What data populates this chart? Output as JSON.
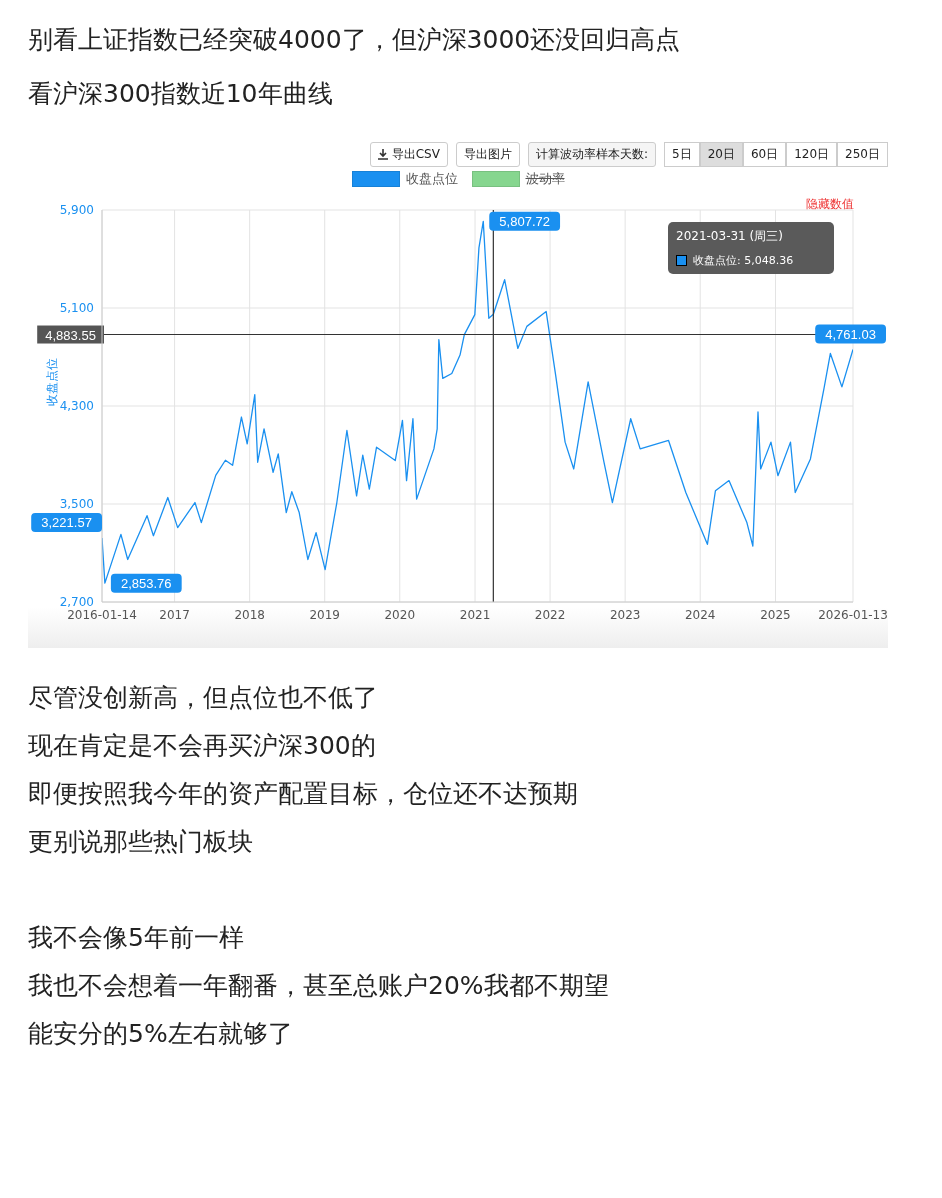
{
  "chart_data": {
    "type": "line",
    "title": "别看上证指数已经突破4000了，但沪深3000还没回归高点",
    "subtitle": "看沪深300指数近10年曲线",
    "ylabel": "收盘点位",
    "x": [
      "2016-01-14",
      "2016-01-28",
      "2016-04-15",
      "2016-05-18",
      "2016-08-20",
      "2016-09-20",
      "2016-11-29",
      "2017-01-16",
      "2017-04-10",
      "2017-05-11",
      "2017-07-20",
      "2017-09-05",
      "2017-10-10",
      "2017-11-22",
      "2017-12-20",
      "2018-01-26",
      "2018-02-09",
      "2018-03-12",
      "2018-04-25",
      "2018-05-20",
      "2018-06-28",
      "2018-07-25",
      "2018-08-30",
      "2018-10-11",
      "2018-11-20",
      "2019-01-03",
      "2019-03-01",
      "2019-04-19",
      "2019-06-05",
      "2019-07-05",
      "2019-08-06",
      "2019-09-10",
      "2019-12-10",
      "2020-01-14",
      "2020-02-03",
      "2020-03-05",
      "2020-03-23",
      "2020-06-15",
      "2020-07-01",
      "2020-07-09",
      "2020-07-28",
      "2020-09-10",
      "2020-10-20",
      "2020-11-10",
      "2020-12-31",
      "2021-01-20",
      "2021-02-10",
      "2021-03-09",
      "2021-03-31",
      "2021-05-25",
      "2021-07-28",
      "2021-09-10",
      "2021-12-13",
      "2022-01-28",
      "2022-03-15",
      "2022-04-26",
      "2022-07-05",
      "2022-09-20",
      "2022-10-31",
      "2023-01-28",
      "2023-03-15",
      "2023-07-31",
      "2023-10-23",
      "2024-02-05",
      "2024-03-15",
      "2024-05-20",
      "2024-08-15",
      "2024-09-13",
      "2024-10-08",
      "2024-10-21",
      "2024-12-10",
      "2025-01-13",
      "2025-03-15",
      "2025-04-07",
      "2025-06-20",
      "2025-08-25",
      "2025-09-25",
      "2025-11-20",
      "2026-01-13"
    ],
    "series": [
      {
        "name": "收盘点位",
        "color": "#1a90f0",
        "values": [
          3221.57,
          2853.76,
          3252,
          3047,
          3405,
          3241,
          3553,
          3307,
          3512,
          3348,
          3734,
          3857,
          3816,
          4210,
          3991,
          4393,
          3841,
          4114,
          3759,
          3909,
          3430,
          3600,
          3430,
          3047,
          3266,
          2965,
          3512,
          4100,
          3567,
          3898,
          3622,
          3964,
          3855,
          4183,
          3691,
          4196,
          3540,
          3950,
          4114,
          4842,
          4525,
          4565,
          4716,
          4883,
          5046,
          5591,
          5807.72,
          5016,
          5048.36,
          5331,
          4770,
          4950,
          5071,
          4552,
          4005,
          3786,
          4497,
          3841,
          3512,
          4196,
          3950,
          4019,
          3594,
          3171,
          3608,
          3691,
          3348,
          3157,
          4251,
          3786,
          4005,
          3731,
          4005,
          3594,
          3868,
          4443,
          4729,
          4456,
          4761.03
        ],
        "value_labels": [
          "3,221.57",
          "2,853.76",
          null,
          null,
          null,
          null,
          null,
          null,
          null,
          null,
          null,
          null,
          null,
          null,
          null,
          null,
          null,
          null,
          null,
          null,
          null,
          null,
          null,
          null,
          null,
          null,
          null,
          null,
          null,
          null,
          null,
          null,
          null,
          null,
          null,
          null,
          null,
          null,
          null,
          null,
          null,
          null,
          null,
          null,
          null,
          null,
          "5,807.72",
          null,
          null,
          null,
          null,
          null,
          null,
          null,
          null,
          null,
          null,
          null,
          null,
          null,
          null,
          null,
          null,
          null,
          null,
          null,
          null,
          null,
          null,
          null,
          null,
          null,
          null,
          null,
          null,
          null,
          null,
          null,
          "4,761.03"
        ]
      },
      {
        "name": "波动率",
        "color": "#86d68f",
        "values": [
          null,
          null,
          null,
          null,
          null,
          null,
          null,
          null,
          null,
          null,
          null,
          null,
          null,
          null,
          null,
          null,
          null,
          null,
          null,
          null,
          null,
          null,
          null,
          null,
          null,
          null,
          null,
          null,
          null,
          null,
          null,
          null,
          null,
          null,
          null,
          null,
          null,
          null,
          null,
          null,
          null,
          null,
          null,
          null,
          null,
          null,
          null,
          null,
          null,
          null,
          null,
          null,
          null,
          null,
          null,
          null,
          null,
          null,
          null,
          null,
          null,
          null,
          null,
          null,
          null,
          null,
          null,
          null,
          null,
          null,
          null,
          null,
          null,
          null,
          null,
          null,
          null,
          null,
          null
        ]
      }
    ],
    "xlim": [
      "2016-01-14",
      "2026-01-13"
    ],
    "xticks": [
      {
        "value": "2016-01-14",
        "label": "2016-01-14"
      },
      {
        "value": "2017-01-01",
        "label": "2017"
      },
      {
        "value": "2018-01-01",
        "label": "2018"
      },
      {
        "value": "2019-01-01",
        "label": "2019"
      },
      {
        "value": "2020-01-01",
        "label": "2020"
      },
      {
        "value": "2021-01-01",
        "label": "2021"
      },
      {
        "value": "2022-01-01",
        "label": "2022"
      },
      {
        "value": "2023-01-01",
        "label": "2023"
      },
      {
        "value": "2024-01-01",
        "label": "2024"
      },
      {
        "value": "2025-01-01",
        "label": "2025"
      },
      {
        "value": "2026-01-13",
        "label": "2026-01-13"
      }
    ],
    "ylim": [
      2700,
      5900
    ],
    "yticks": [
      {
        "value": 2700,
        "label": "2,700"
      },
      {
        "value": 3500,
        "label": "3,500"
      },
      {
        "value": 4300,
        "label": "4,300"
      },
      {
        "value": 5100,
        "label": "5,100"
      },
      {
        "value": 5900,
        "label": "5,900"
      }
    ],
    "grid": true,
    "legend": "top",
    "marker": "none",
    "line_style": "solid",
    "ref_lines": [
      {
        "axis": "x",
        "value": "2021-03-31",
        "color": "#333333"
      },
      {
        "axis": "y",
        "value": 4883.55,
        "label": "4,883.55",
        "color": "#333333"
      }
    ],
    "annotations": [
      "导出CSV",
      "导出图片",
      "计算波动率样本天数:",
      "5日",
      "20日",
      "60日",
      "120日",
      "250日",
      "隐藏数值",
      "2021-03-31 (周三)",
      "收盘点位: 5,048.36",
      "尽管没创新高，但点位也不低了",
      "现在肯定是不会再买沪深300的",
      "即便按照我今年的资产配置目标，仓位还不达预期",
      "更别说那些热门板块",
      "我不会像5年前一样",
      "我也不会想着一年翻番，甚至总账户20%我都不期望",
      "能安分的5%左右就够了"
    ]
  }
}
